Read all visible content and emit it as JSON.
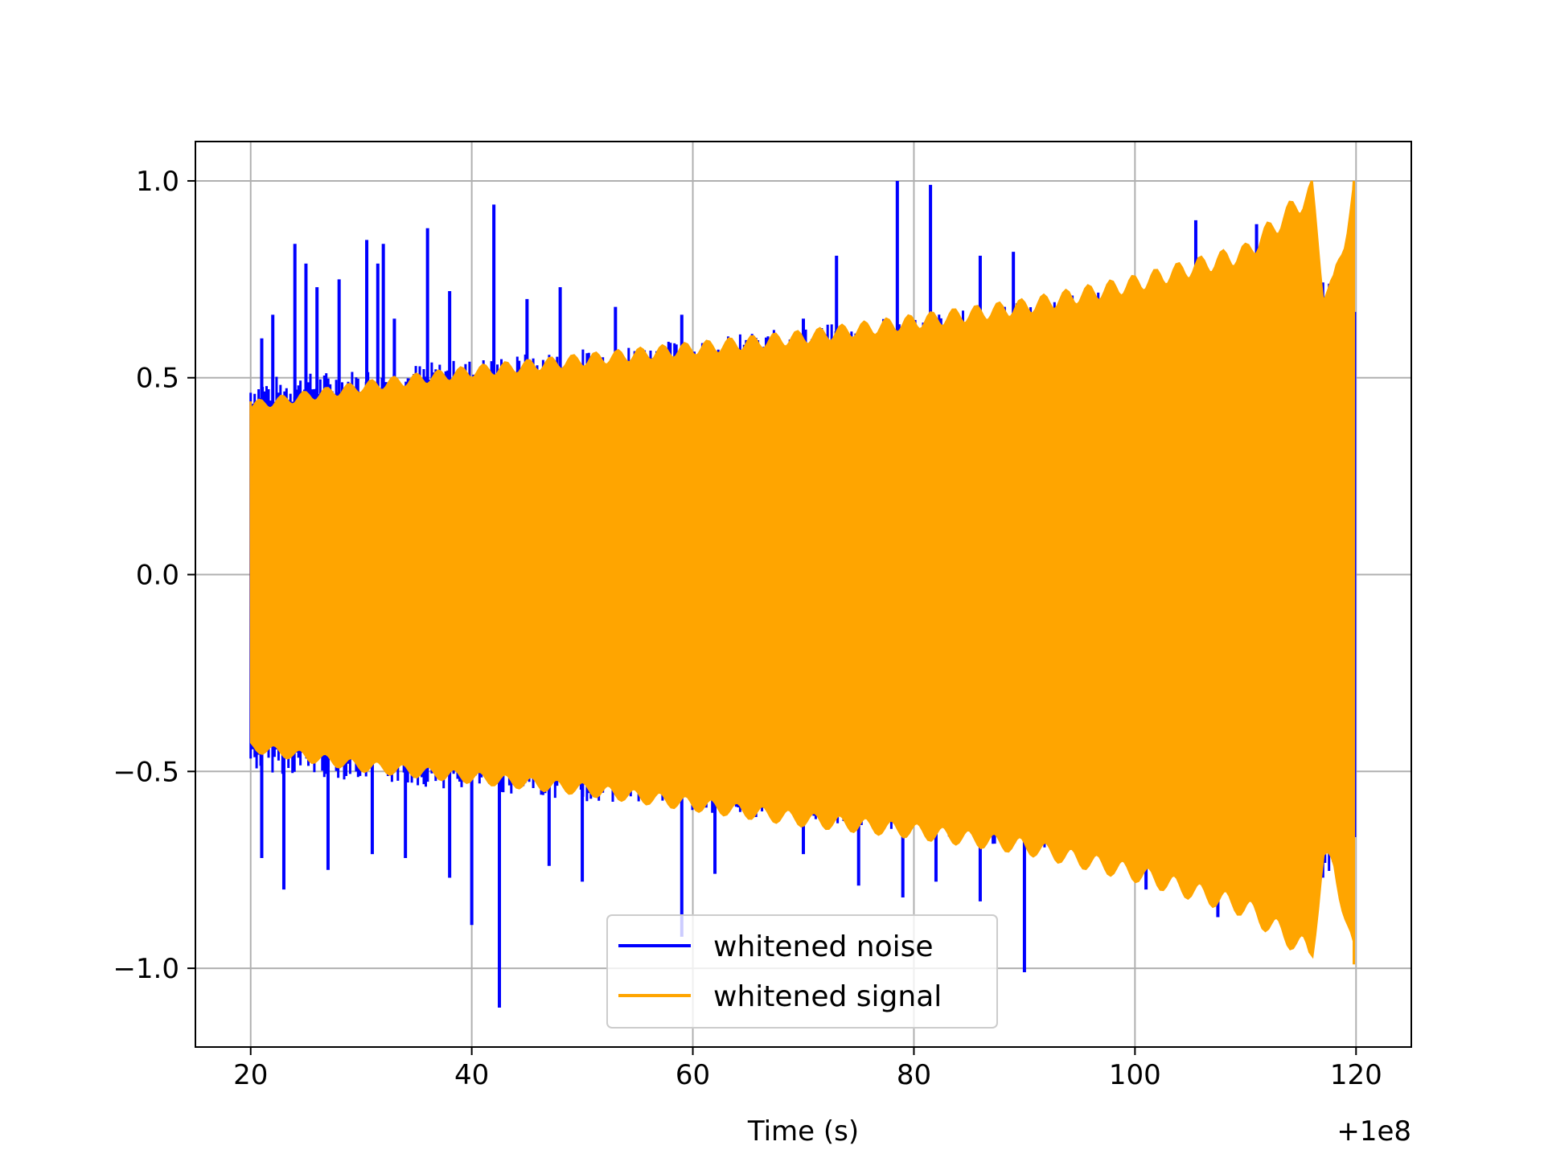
{
  "chart_data": {
    "type": "line",
    "title": "",
    "xlabel": "Time (s)",
    "ylabel": "",
    "x_offset_label": "+1e8",
    "xlim": [
      15,
      125
    ],
    "ylim": [
      -1.2,
      1.1
    ],
    "xticks": [
      20,
      40,
      60,
      80,
      100,
      120
    ],
    "xtick_labels": [
      "20",
      "40",
      "60",
      "80",
      "100",
      "120"
    ],
    "yticks": [
      -1.0,
      -0.5,
      0.0,
      0.5,
      1.0
    ],
    "ytick_labels": [
      "−1.0",
      "−0.5",
      "0.0",
      "0.5",
      "1.0"
    ],
    "grid": true,
    "legend_position": "lower-center",
    "series": [
      {
        "name": "whitened noise",
        "color": "#0000ff",
        "x_range": [
          20,
          120
        ],
        "envelope_upper": [
          [
            20,
            0.5
          ],
          [
            40,
            0.55
          ],
          [
            60,
            0.6
          ],
          [
            80,
            0.66
          ],
          [
            100,
            0.73
          ],
          [
            120,
            0.78
          ]
        ],
        "envelope_lower": [
          [
            20,
            -0.5
          ],
          [
            40,
            -0.55
          ],
          [
            60,
            -0.6
          ],
          [
            80,
            -0.66
          ],
          [
            100,
            -0.73
          ],
          [
            120,
            -0.78
          ]
        ],
        "spikes": [
          [
            21,
            0.6
          ],
          [
            22,
            0.66
          ],
          [
            24,
            0.84
          ],
          [
            25,
            0.79
          ],
          [
            26,
            0.73
          ],
          [
            28,
            0.75
          ],
          [
            30.5,
            0.85
          ],
          [
            31.5,
            0.79
          ],
          [
            32,
            0.84
          ],
          [
            33,
            0.65
          ],
          [
            36,
            0.88
          ],
          [
            38,
            0.72
          ],
          [
            42,
            0.94
          ],
          [
            45,
            0.7
          ],
          [
            48,
            0.73
          ],
          [
            53,
            0.68
          ],
          [
            59,
            0.66
          ],
          [
            70,
            0.65
          ],
          [
            73,
            0.81
          ],
          [
            78.5,
            1.0
          ],
          [
            81.5,
            0.99
          ],
          [
            86,
            0.81
          ],
          [
            89,
            0.82
          ],
          [
            105.5,
            0.9
          ],
          [
            111,
            0.89
          ],
          [
            21,
            -0.72
          ],
          [
            23,
            -0.8
          ],
          [
            27,
            -0.75
          ],
          [
            31,
            -0.71
          ],
          [
            34,
            -0.72
          ],
          [
            38,
            -0.77
          ],
          [
            40,
            -0.89
          ],
          [
            42.5,
            -1.1
          ],
          [
            47,
            -0.74
          ],
          [
            50,
            -0.78
          ],
          [
            59,
            -0.92
          ],
          [
            62,
            -0.76
          ],
          [
            70,
            -0.71
          ],
          [
            75,
            -0.79
          ],
          [
            79,
            -0.82
          ],
          [
            82,
            -0.78
          ],
          [
            86,
            -0.83
          ],
          [
            90,
            -1.01
          ],
          [
            101,
            -0.8
          ],
          [
            107.5,
            -0.87
          ],
          [
            111,
            -0.8
          ]
        ]
      },
      {
        "name": "whitened signal",
        "color": "#ffa500",
        "x_range": [
          20,
          120
        ],
        "envelope_upper": [
          [
            20,
            0.44
          ],
          [
            30,
            0.49
          ],
          [
            40,
            0.53
          ],
          [
            50,
            0.56
          ],
          [
            60,
            0.59
          ],
          [
            70,
            0.62
          ],
          [
            80,
            0.66
          ],
          [
            90,
            0.7
          ],
          [
            100,
            0.76
          ],
          [
            110,
            0.84
          ],
          [
            116,
            1.0
          ],
          [
            117,
            0.74
          ],
          [
            118,
            0.76
          ],
          [
            119,
            0.88
          ],
          [
            119.8,
            1.0
          ]
        ],
        "envelope_lower": [
          [
            20,
            -0.45
          ],
          [
            30,
            -0.5
          ],
          [
            40,
            -0.53
          ],
          [
            50,
            -0.56
          ],
          [
            60,
            -0.6
          ],
          [
            70,
            -0.64
          ],
          [
            80,
            -0.67
          ],
          [
            90,
            -0.71
          ],
          [
            100,
            -0.78
          ],
          [
            110,
            -0.87
          ],
          [
            116,
            -0.99
          ],
          [
            117,
            -0.74
          ],
          [
            118,
            -0.76
          ],
          [
            119,
            -0.88
          ],
          [
            119.8,
            -0.99
          ]
        ]
      }
    ]
  }
}
